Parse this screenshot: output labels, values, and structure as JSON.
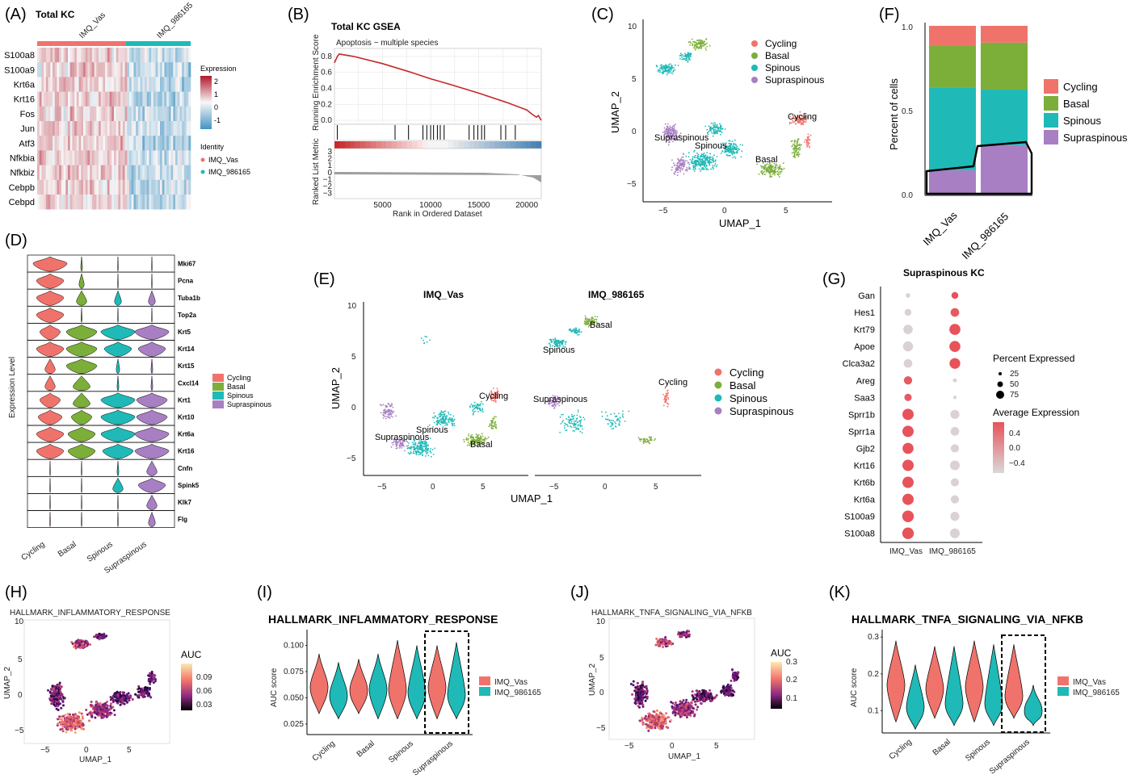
{
  "colors": {
    "cycling": "#F0736B",
    "basal": "#7CAE3A",
    "spinous": "#1FBAB7",
    "suprapinous": "#A87FC3",
    "vas": "#F0736B",
    "imq": "#1FBAB7",
    "gsea_line": "#C62828",
    "heat_high": "#B2182B",
    "heat_low": "#4393C3"
  },
  "panel_labels": [
    "(A)",
    "(B)",
    "(C)",
    "(D)",
    "(E)",
    "(F)",
    "(G)",
    "(H)",
    "(I)",
    "(J)",
    "(K)"
  ],
  "chart_data": [
    {
      "id": "A",
      "type": "heatmap",
      "title": "Total KC",
      "groups": [
        "IMQ_Vas",
        "IMQ_986165"
      ],
      "genes": [
        "S100a8",
        "S100a9",
        "Krt6a",
        "Krt16",
        "Fos",
        "Jun",
        "Atf3",
        "Nfkbia",
        "Nfkbiz",
        "Cebpb",
        "Cebpd"
      ],
      "legend_title": "Expression",
      "legend_ticks": [
        "2",
        "1",
        "0",
        "-1"
      ],
      "identity_title": "Identity",
      "identity_items": [
        "IMQ_Vas",
        "IMQ_986165"
      ]
    },
    {
      "id": "B",
      "type": "line",
      "title": "Total KC GSEA",
      "subtitle": "Apoptosis − multiple species",
      "ylabel": "Running Enrichment Score",
      "ylabel2": "Ranked List Metric",
      "xlabel": "Rank in Ordered Dataset",
      "x_ticks": [
        "5000",
        "10000",
        "15000",
        "20000"
      ],
      "y_ticks": [
        "0.8",
        "0.6",
        "0.4",
        "0.2",
        "0.0"
      ],
      "y2_ticks": [
        "3",
        "2",
        "1",
        "0",
        "−1",
        "−2",
        "−3"
      ],
      "xlim": [
        0,
        21500
      ],
      "ylim": [
        -0.05,
        0.9
      ],
      "x": [
        0,
        300,
        500,
        2000,
        5000,
        8000,
        10000,
        12000,
        15000,
        18000,
        20000,
        20500,
        21000,
        21200,
        21500
      ],
      "y": [
        0.72,
        0.8,
        0.83,
        0.8,
        0.71,
        0.6,
        0.52,
        0.45,
        0.34,
        0.22,
        0.13,
        0.08,
        0.04,
        0.06,
        0.0
      ],
      "hit_positions": [
        300,
        6300,
        7700,
        9200,
        9600,
        10000,
        10300,
        10700,
        11000,
        11400,
        14000,
        14500,
        14900,
        15300,
        15600,
        17300,
        17800,
        18800
      ]
    },
    {
      "id": "C",
      "type": "scatter",
      "xlabel": "UMAP_1",
      "ylabel": "UMAP_2",
      "x_ticks": [
        "−5",
        "0",
        "5"
      ],
      "y_ticks": [
        "10",
        "5",
        "0",
        "−5"
      ],
      "series": [
        {
          "name": "Cycling",
          "color_key": "cycling"
        },
        {
          "name": "Basal",
          "color_key": "basal"
        },
        {
          "name": "Spinous",
          "color_key": "spinous"
        },
        {
          "name": "Supraspinous",
          "color_key": "suprapinous"
        }
      ],
      "cluster_labels": [
        "Cycling",
        "Supraspinous",
        "Spinous",
        "Basal"
      ]
    },
    {
      "id": "D",
      "type": "violin",
      "ylabel": "Expression Level",
      "categories": [
        "Cycling",
        "Basal",
        "Spinous",
        "Supraspinous"
      ],
      "genes": [
        "Mki67",
        "Pcna",
        "Tuba1b",
        "Top2a",
        "Krt5",
        "Krt14",
        "Krt15",
        "Cxcl14",
        "Krt1",
        "Krt10",
        "Krt6a",
        "Krt16",
        "Cnfn",
        "Spink5",
        "Klk7",
        "Flg"
      ],
      "legend": [
        "Cycling",
        "Basal",
        "Spinous",
        "Supraspinous"
      ],
      "violin_widths": [
        [
          1.0,
          0.05,
          0.02,
          0.02
        ],
        [
          0.8,
          0.15,
          0.02,
          0.02
        ],
        [
          0.8,
          0.3,
          0.2,
          0.2
        ],
        [
          0.8,
          0.03,
          0.02,
          0.02
        ],
        [
          0.6,
          0.9,
          1.0,
          1.0
        ],
        [
          0.8,
          0.9,
          0.8,
          0.8
        ],
        [
          0.3,
          0.9,
          0.1,
          0.05
        ],
        [
          0.3,
          0.5,
          0.05,
          0.05
        ],
        [
          0.6,
          0.5,
          1.0,
          0.9
        ],
        [
          0.7,
          0.6,
          1.0,
          0.9
        ],
        [
          0.8,
          0.8,
          1.0,
          1.0
        ],
        [
          0.8,
          0.8,
          0.9,
          1.0
        ],
        [
          0.02,
          0.02,
          0.05,
          0.3
        ],
        [
          0.02,
          0.02,
          0.3,
          0.8
        ],
        [
          0.02,
          0.02,
          0.02,
          0.3
        ],
        [
          0.02,
          0.02,
          0.02,
          0.2
        ]
      ]
    },
    {
      "id": "E",
      "type": "scatter",
      "facets": [
        "IMQ_Vas",
        "IMQ_986165"
      ],
      "xlabel": "UMAP_1",
      "ylabel": "UMAP_2",
      "x_ticks": [
        "−5",
        "0",
        "5"
      ],
      "y_ticks": [
        "10",
        "5",
        "0",
        "−5"
      ],
      "legend": [
        "Cycling",
        "Basal",
        "Spinous",
        "Supraspinous"
      ],
      "cluster_labels_vas": [
        "Cycling",
        "Spinous",
        "Supraspinous",
        "Basal"
      ],
      "cluster_labels_imq": [
        "Basal",
        "Spinous",
        "Supraspinous",
        "Cycling"
      ]
    },
    {
      "id": "F",
      "type": "bar",
      "stacked": true,
      "ylabel": "Percent of cells",
      "categories": [
        "IMQ_Vas",
        "IMQ_986165"
      ],
      "y_ticks": [
        "1.0",
        "0.5",
        "0.0"
      ],
      "ylim": [
        0,
        1
      ],
      "series": [
        {
          "name": "Supraspinous",
          "color_key": "suprapinous",
          "values": [
            0.14,
            0.29
          ]
        },
        {
          "name": "Spinous",
          "color_key": "spinous",
          "values": [
            0.49,
            0.33
          ]
        },
        {
          "name": "Basal",
          "color_key": "basal",
          "values": [
            0.25,
            0.28
          ]
        },
        {
          "name": "Cycling",
          "color_key": "cycling",
          "values": [
            0.12,
            0.1
          ]
        }
      ],
      "legend": [
        "Cycling",
        "Basal",
        "Spinous",
        "Supraspinous"
      ]
    },
    {
      "id": "G",
      "type": "scatter",
      "title": "Supraspinous KC",
      "genes": [
        "Gan",
        "Hes1",
        "Krt79",
        "Apoe",
        "Clca3a2",
        "Areg",
        "Saa3",
        "Sprr1b",
        "Sprr1a",
        "Gjb2",
        "Krt16",
        "Krt6b",
        "Krt6a",
        "S100a9",
        "S100a8"
      ],
      "categories": [
        "IMQ_Vas",
        "IMQ_986165"
      ],
      "pct_vas": [
        8,
        25,
        55,
        65,
        45,
        40,
        30,
        85,
        85,
        80,
        85,
        85,
        85,
        90,
        90
      ],
      "pct_imq": [
        25,
        45,
        80,
        80,
        75,
        5,
        3,
        50,
        45,
        40,
        60,
        40,
        40,
        50,
        60
      ],
      "avg_vas": [
        -0.4,
        -0.4,
        -0.4,
        -0.4,
        -0.4,
        0.4,
        0.4,
        0.45,
        0.45,
        0.45,
        0.45,
        0.45,
        0.45,
        0.45,
        0.45
      ],
      "avg_imq": [
        0.45,
        0.4,
        0.45,
        0.45,
        0.45,
        -0.4,
        -0.4,
        -0.4,
        -0.4,
        -0.4,
        -0.4,
        -0.4,
        -0.4,
        -0.4,
        -0.4
      ],
      "size_legend_title": "Percent Expressed",
      "size_legend": [
        "25",
        "50",
        "75"
      ],
      "color_legend_title": "Average Expression",
      "color_legend": [
        "0.4",
        "0.0",
        "−0.4"
      ]
    },
    {
      "id": "H",
      "type": "scatter",
      "title": "HALLMARK_INFLAMMATORY_RESPONSE",
      "xlabel": "UMAP_1",
      "ylabel": "UMAP_2",
      "x_ticks": [
        "−5",
        "0",
        "5"
      ],
      "y_ticks": [
        "10",
        "5",
        "0",
        "−5"
      ],
      "legend_title": "AUC",
      "legend_ticks": [
        "0.09",
        "0.06",
        "0.03"
      ]
    },
    {
      "id": "I",
      "type": "violin",
      "title": "HALLMARK_INFLAMMATORY_RESPONSE",
      "ylabel": "AUC score",
      "categories": [
        "Cycling",
        "Basal",
        "Spinous",
        "Supraspinous"
      ],
      "y_ticks": [
        "0.100",
        "0.075",
        "0.050",
        "0.025"
      ],
      "ylim": [
        0.015,
        0.115
      ],
      "series": [
        {
          "name": "IMQ_Vas",
          "color_key": "vas",
          "min": [
            0.035,
            0.035,
            0.03,
            0.03
          ],
          "max": [
            0.092,
            0.087,
            0.105,
            0.1
          ],
          "median": [
            0.06,
            0.057,
            0.058,
            0.06
          ]
        },
        {
          "name": "IMQ_986165",
          "color_key": "imq",
          "min": [
            0.03,
            0.03,
            0.03,
            0.03
          ],
          "max": [
            0.084,
            0.092,
            0.1,
            0.103
          ],
          "median": [
            0.052,
            0.058,
            0.055,
            0.053
          ]
        }
      ]
    },
    {
      "id": "J",
      "type": "scatter",
      "title": "HALLMARK_TNFA_SIGNALING_VIA_NFKB",
      "xlabel": "UMAP_1",
      "ylabel": "UMAP_2",
      "x_ticks": [
        "−5",
        "0",
        "5"
      ],
      "y_ticks": [
        "10",
        "5",
        "0",
        "−5"
      ],
      "legend_title": "AUC",
      "legend_ticks": [
        "0.3",
        "0.2",
        "0.1"
      ]
    },
    {
      "id": "K",
      "type": "violin",
      "title": "HALLMARK_TNFA_SIGNALING_VIA_NFKB",
      "ylabel": "AUC score",
      "categories": [
        "Cycling",
        "Basal",
        "Spinous",
        "Supraspinous"
      ],
      "y_ticks": [
        "0.3",
        "0.2",
        "0.1"
      ],
      "ylim": [
        0.04,
        0.32
      ],
      "series": [
        {
          "name": "IMQ_Vas",
          "color_key": "vas",
          "min": [
            0.07,
            0.08,
            0.07,
            0.08
          ],
          "max": [
            0.29,
            0.275,
            0.29,
            0.28
          ],
          "median": [
            0.17,
            0.16,
            0.165,
            0.14
          ]
        },
        {
          "name": "IMQ_986165",
          "color_key": "imq",
          "min": [
            0.05,
            0.06,
            0.06,
            0.06
          ],
          "max": [
            0.225,
            0.275,
            0.28,
            0.17
          ],
          "median": [
            0.11,
            0.12,
            0.12,
            0.1
          ]
        }
      ]
    }
  ]
}
